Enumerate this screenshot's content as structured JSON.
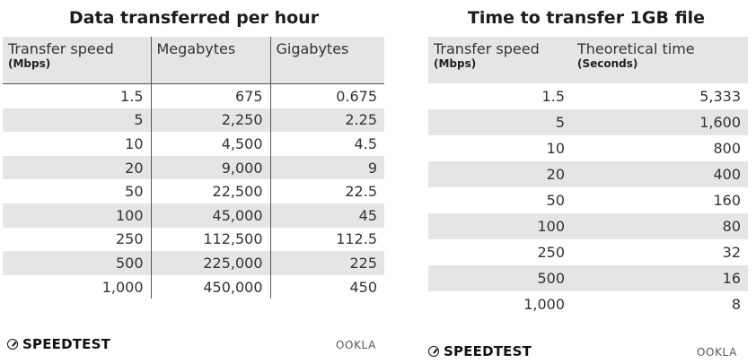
{
  "left": {
    "title": "Data transferred per hour",
    "headers": {
      "col1": "Transfer speed",
      "col1_sub": "(Mbps)",
      "col2": "Megabytes",
      "col3": "Gigabytes"
    },
    "rows": [
      [
        "1.5",
        "675",
        "0.675"
      ],
      [
        "5",
        "2,250",
        "2.25"
      ],
      [
        "10",
        "4,500",
        "4.5"
      ],
      [
        "20",
        "9,000",
        "9"
      ],
      [
        "50",
        "22,500",
        "22.5"
      ],
      [
        "100",
        "45,000",
        "45"
      ],
      [
        "250",
        "112,500",
        "112.5"
      ],
      [
        "500",
        "225,000",
        "225"
      ],
      [
        "1,000",
        "450,000",
        "450"
      ]
    ]
  },
  "right": {
    "title": "Time to transfer 1GB file",
    "headers": {
      "col1": "Transfer speed",
      "col1_sub": "(Mbps)",
      "col2": "Theoretical time",
      "col2_sub": "(Seconds)"
    },
    "rows": [
      [
        "1.5",
        "5,333"
      ],
      [
        "5",
        "1,600"
      ],
      [
        "10",
        "800"
      ],
      [
        "20",
        "400"
      ],
      [
        "50",
        "160"
      ],
      [
        "100",
        "80"
      ],
      [
        "250",
        "32"
      ],
      [
        "500",
        "16"
      ],
      [
        "1,000",
        "8"
      ]
    ]
  },
  "branding": {
    "speedtest": "SPEEDTEST",
    "ookla": "OOKLA"
  },
  "colors": {
    "shade": "#e5e5e5",
    "rule": "#555555",
    "text": "#222222"
  }
}
